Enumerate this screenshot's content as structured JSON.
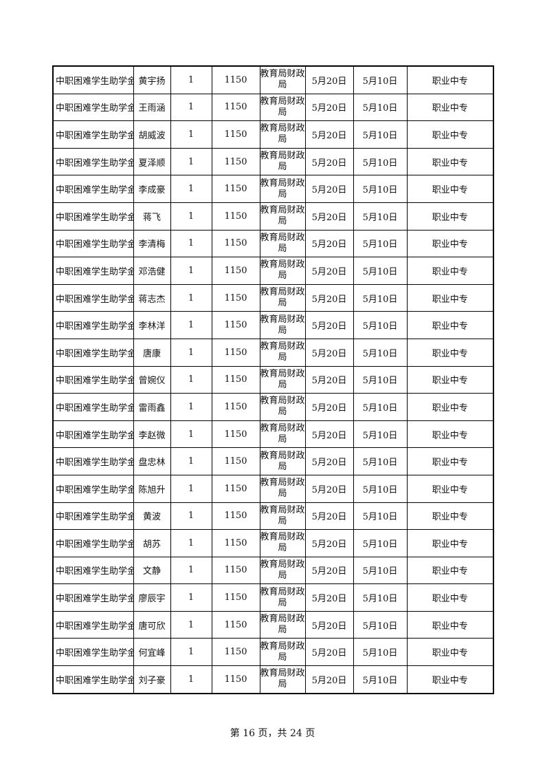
{
  "table": {
    "rows": [
      [
        "中职困难学生助学金",
        "黄宇扬",
        "1",
        "1150",
        "教育局财政局",
        "5月20日",
        "5月10日",
        "职业中专"
      ],
      [
        "中职困难学生助学金",
        "王雨涵",
        "1",
        "1150",
        "教育局财政局",
        "5月20日",
        "5月10日",
        "职业中专"
      ],
      [
        "中职困难学生助学金",
        "胡威波",
        "1",
        "1150",
        "教育局财政局",
        "5月20日",
        "5月10日",
        "职业中专"
      ],
      [
        "中职困难学生助学金",
        "夏泽顺",
        "1",
        "1150",
        "教育局财政局",
        "5月20日",
        "5月10日",
        "职业中专"
      ],
      [
        "中职困难学生助学金",
        "李成豪",
        "1",
        "1150",
        "教育局财政局",
        "5月20日",
        "5月10日",
        "职业中专"
      ],
      [
        "中职困难学生助学金",
        "蒋飞",
        "1",
        "1150",
        "教育局财政局",
        "5月20日",
        "5月10日",
        "职业中专"
      ],
      [
        "中职困难学生助学金",
        "李清梅",
        "1",
        "1150",
        "教育局财政局",
        "5月20日",
        "5月10日",
        "职业中专"
      ],
      [
        "中职困难学生助学金",
        "邓浩健",
        "1",
        "1150",
        "教育局财政局",
        "5月20日",
        "5月10日",
        "职业中专"
      ],
      [
        "中职困难学生助学金",
        "蒋志杰",
        "1",
        "1150",
        "教育局财政局",
        "5月20日",
        "5月10日",
        "职业中专"
      ],
      [
        "中职困难学生助学金",
        "李林洋",
        "1",
        "1150",
        "教育局财政局",
        "5月20日",
        "5月10日",
        "职业中专"
      ],
      [
        "中职困难学生助学金",
        "唐康",
        "1",
        "1150",
        "教育局财政局",
        "5月20日",
        "5月10日",
        "职业中专"
      ],
      [
        "中职困难学生助学金",
        "曾婉仪",
        "1",
        "1150",
        "教育局财政局",
        "5月20日",
        "5月10日",
        "职业中专"
      ],
      [
        "中职困难学生助学金",
        "雷雨鑫",
        "1",
        "1150",
        "教育局财政局",
        "5月20日",
        "5月10日",
        "职业中专"
      ],
      [
        "中职困难学生助学金",
        "李赵微",
        "1",
        "1150",
        "教育局财政局",
        "5月20日",
        "5月10日",
        "职业中专"
      ],
      [
        "中职困难学生助学金",
        "盘忠林",
        "1",
        "1150",
        "教育局财政局",
        "5月20日",
        "5月10日",
        "职业中专"
      ],
      [
        "中职困难学生助学金",
        "陈旭升",
        "1",
        "1150",
        "教育局财政局",
        "5月20日",
        "5月10日",
        "职业中专"
      ],
      [
        "中职困难学生助学金",
        "黄波",
        "1",
        "1150",
        "教育局财政局",
        "5月20日",
        "5月10日",
        "职业中专"
      ],
      [
        "中职困难学生助学金",
        "胡苏",
        "1",
        "1150",
        "教育局财政局",
        "5月20日",
        "5月10日",
        "职业中专"
      ],
      [
        "中职困难学生助学金",
        "文静",
        "1",
        "1150",
        "教育局财政局",
        "5月20日",
        "5月10日",
        "职业中专"
      ],
      [
        "中职困难学生助学金",
        "廖辰宇",
        "1",
        "1150",
        "教育局财政局",
        "5月20日",
        "5月10日",
        "职业中专"
      ],
      [
        "中职困难学生助学金",
        "唐可欣",
        "1",
        "1150",
        "教育局财政局",
        "5月20日",
        "5月10日",
        "职业中专"
      ],
      [
        "中职困难学生助学金",
        "何宜峰",
        "1",
        "1150",
        "教育局财政局",
        "5月20日",
        "5月10日",
        "职业中专"
      ],
      [
        "中职困难学生助学金",
        "刘子豪",
        "1",
        "1150",
        "教育局财政局",
        "5月20日",
        "5月10日",
        "职业中专"
      ]
    ]
  },
  "footer": {
    "page_label": "第 16 页，共 24 页"
  }
}
